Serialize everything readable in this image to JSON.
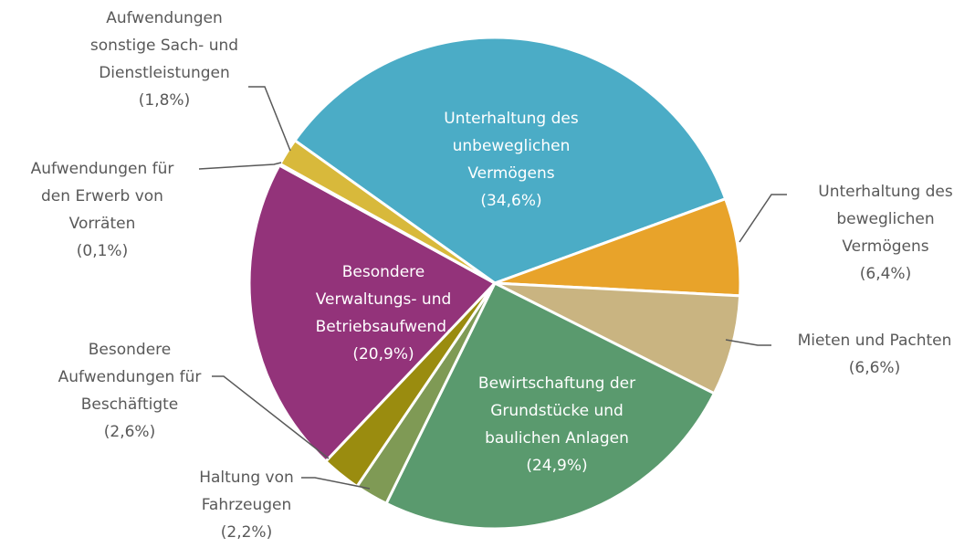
{
  "chart_data": {
    "type": "pie",
    "categories": [
      "Unterhaltung des\nunbeweglichen\nVermögens",
      "Unterhaltung des\nbeweglichen\nVermögens",
      "Mieten und Pachten",
      "Bewirtschaftung der\nGrundstücke und\nbaulichen Anlagen",
      "Haltung von\nFahrzeugen",
      "Besondere\nAufwendungen für\nBeschäftigte",
      "Besondere\nVerwaltungs- und\nBetriebsaufwend.",
      "Aufwendungen für\nden Erwerb von\nVorräten",
      "Aufwendungen\nsonstige Sach- und\nDienstleistungen"
    ],
    "values": [
      34.6,
      6.4,
      6.6,
      24.9,
      2.2,
      2.6,
      20.9,
      0.1,
      1.8
    ],
    "value_labels": [
      "(34,6%)",
      "(6,4%)",
      "(6,6%)",
      "(24,9%)",
      "(2,2%)",
      "(2,6%)",
      "(20,9%)",
      "(0,1%)",
      "(1,8%)"
    ],
    "colors": [
      "#4bacc6",
      "#e8a32a",
      "#c9b481",
      "#5a9a6e",
      "#7f9a55",
      "#9a8c0f",
      "#93337a",
      "#d0d0d0",
      "#d8b93b"
    ]
  }
}
